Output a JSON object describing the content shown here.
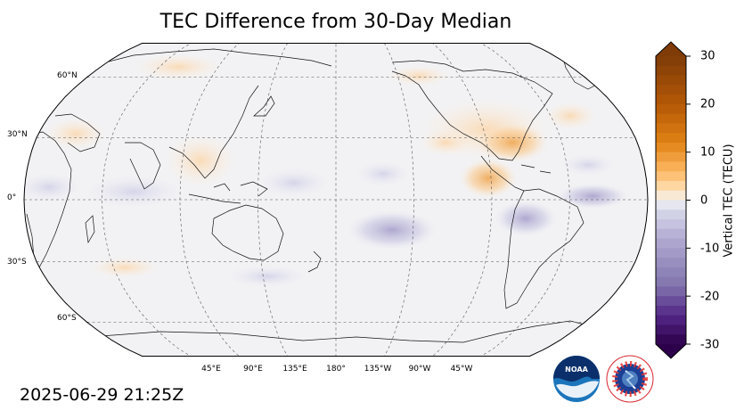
{
  "title": "TEC Difference from 30-Day Median",
  "timestamp": "2025-06-29 21:25Z",
  "map": {
    "projection": "Robinson",
    "central_longitude": 180,
    "lat_labels": [
      "60°N",
      "30°N",
      "0°",
      "30°S",
      "60°S"
    ],
    "lon_labels": [
      "45°E",
      "90°E",
      "135°E",
      "180°",
      "135°W",
      "90°W",
      "45°W"
    ]
  },
  "colorbar": {
    "label": "Vertical TEC (TECU)",
    "ticks": [
      "30",
      "20",
      "10",
      "0",
      "-10",
      "-20",
      "-30"
    ],
    "range": [
      -30,
      30
    ],
    "extend": "both",
    "colors": {
      "positive_max": "#7f3b08",
      "positive_mid": "#e08214",
      "positive_low": "#fee0b6",
      "neutral": "#f2f2f2",
      "negative_low": "#d8daeb",
      "negative_mid": "#8073ac",
      "negative_max": "#2d004b"
    }
  },
  "logos": {
    "noaa": {
      "text": "NOAA",
      "icon": "noaa-logo"
    },
    "nws": {
      "text": "NATIONAL WEATHER SERVICE",
      "icon": "nws-logo"
    }
  }
}
